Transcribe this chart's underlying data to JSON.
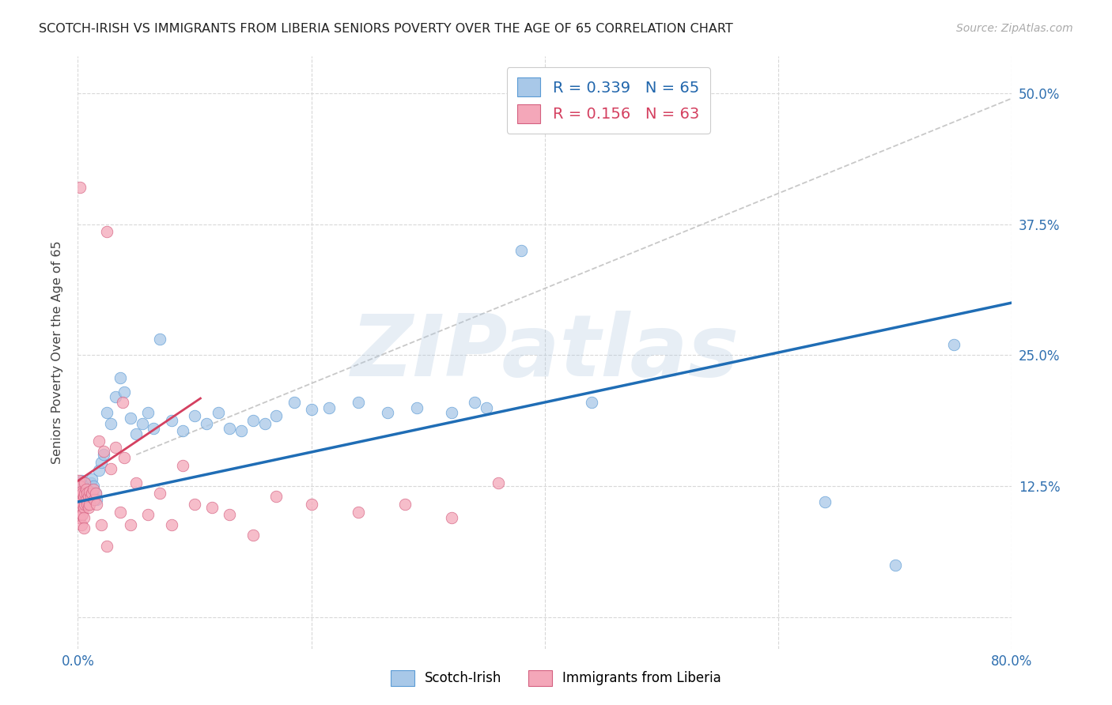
{
  "title": "SCOTCH-IRISH VS IMMIGRANTS FROM LIBERIA SENIORS POVERTY OVER THE AGE OF 65 CORRELATION CHART",
  "source": "Source: ZipAtlas.com",
  "ylabel": "Seniors Poverty Over the Age of 65",
  "xlim": [
    0.0,
    0.8
  ],
  "ylim": [
    -0.03,
    0.535
  ],
  "blue_color": "#a8c8e8",
  "blue_edge": "#5b9bd5",
  "pink_color": "#f4a7b9",
  "pink_edge": "#d46080",
  "blue_line_color": "#1f6db5",
  "pink_line_color": "#d44060",
  "gray_dash_color": "#bbbbbb",
  "legend_text1": "R = 0.339   N = 65",
  "legend_text2": "R = 0.156   N = 63",
  "legend_label1": "Scotch-Irish",
  "legend_label2": "Immigrants from Liberia",
  "watermark": "ZIPatlas",
  "scotch_irish_x": [
    0.001,
    0.001,
    0.002,
    0.002,
    0.003,
    0.003,
    0.003,
    0.004,
    0.004,
    0.005,
    0.005,
    0.005,
    0.006,
    0.006,
    0.007,
    0.007,
    0.008,
    0.008,
    0.009,
    0.01,
    0.01,
    0.011,
    0.012,
    0.013,
    0.015,
    0.016,
    0.018,
    0.02,
    0.022,
    0.025,
    0.028,
    0.032,
    0.036,
    0.04,
    0.045,
    0.05,
    0.055,
    0.06,
    0.065,
    0.07,
    0.08,
    0.09,
    0.1,
    0.11,
    0.12,
    0.13,
    0.14,
    0.15,
    0.16,
    0.17,
    0.185,
    0.2,
    0.215,
    0.24,
    0.265,
    0.29,
    0.32,
    0.35,
    0.38,
    0.34,
    0.44,
    0.5,
    0.64,
    0.7,
    0.75
  ],
  "scotch_irish_y": [
    0.115,
    0.125,
    0.118,
    0.128,
    0.112,
    0.12,
    0.13,
    0.122,
    0.115,
    0.118,
    0.125,
    0.11,
    0.128,
    0.12,
    0.115,
    0.125,
    0.118,
    0.112,
    0.12,
    0.125,
    0.118,
    0.128,
    0.132,
    0.125,
    0.118,
    0.112,
    0.14,
    0.148,
    0.155,
    0.195,
    0.185,
    0.21,
    0.228,
    0.215,
    0.19,
    0.175,
    0.185,
    0.195,
    0.18,
    0.265,
    0.188,
    0.178,
    0.192,
    0.185,
    0.195,
    0.18,
    0.178,
    0.188,
    0.185,
    0.192,
    0.205,
    0.198,
    0.2,
    0.205,
    0.195,
    0.2,
    0.195,
    0.2,
    0.35,
    0.205,
    0.205,
    0.48,
    0.11,
    0.05,
    0.26
  ],
  "liberia_x": [
    0.001,
    0.001,
    0.001,
    0.001,
    0.002,
    0.002,
    0.002,
    0.002,
    0.003,
    0.003,
    0.003,
    0.003,
    0.004,
    0.004,
    0.004,
    0.005,
    0.005,
    0.005,
    0.005,
    0.006,
    0.006,
    0.006,
    0.007,
    0.007,
    0.008,
    0.008,
    0.009,
    0.009,
    0.01,
    0.01,
    0.011,
    0.012,
    0.013,
    0.014,
    0.015,
    0.016,
    0.018,
    0.02,
    0.022,
    0.025,
    0.028,
    0.032,
    0.036,
    0.04,
    0.045,
    0.05,
    0.06,
    0.07,
    0.08,
    0.09,
    0.1,
    0.115,
    0.13,
    0.15,
    0.17,
    0.2,
    0.24,
    0.28,
    0.32,
    0.36,
    0.038,
    0.025,
    0.002
  ],
  "liberia_y": [
    0.13,
    0.118,
    0.108,
    0.095,
    0.125,
    0.115,
    0.105,
    0.095,
    0.12,
    0.11,
    0.098,
    0.088,
    0.118,
    0.108,
    0.098,
    0.115,
    0.105,
    0.095,
    0.085,
    0.128,
    0.118,
    0.108,
    0.122,
    0.112,
    0.118,
    0.108,
    0.115,
    0.105,
    0.12,
    0.108,
    0.115,
    0.118,
    0.122,
    0.112,
    0.118,
    0.108,
    0.168,
    0.088,
    0.158,
    0.068,
    0.142,
    0.162,
    0.1,
    0.152,
    0.088,
    0.128,
    0.098,
    0.118,
    0.088,
    0.145,
    0.108,
    0.105,
    0.098,
    0.078,
    0.115,
    0.108,
    0.1,
    0.108,
    0.095,
    0.128,
    0.205,
    0.368,
    0.41
  ]
}
